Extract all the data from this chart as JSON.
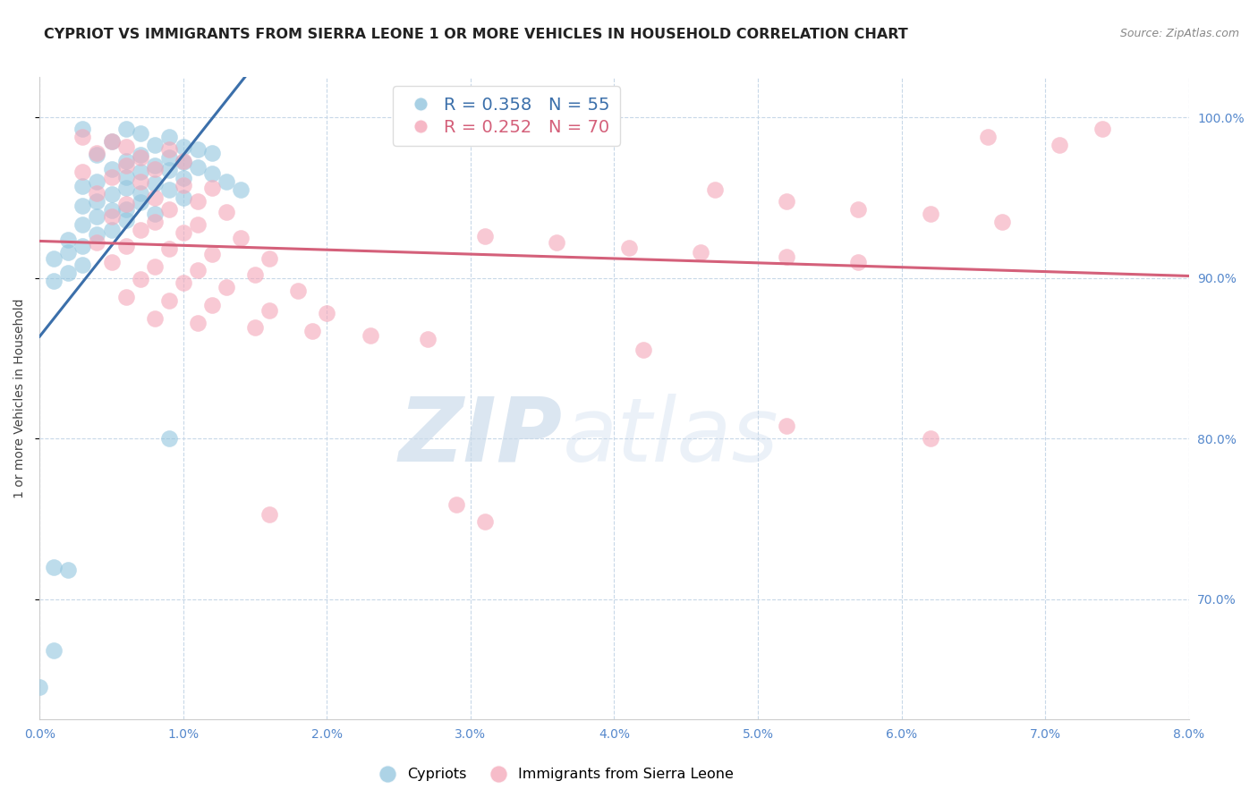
{
  "title": "CYPRIOT VS IMMIGRANTS FROM SIERRA LEONE 1 OR MORE VEHICLES IN HOUSEHOLD CORRELATION CHART",
  "source": "Source: ZipAtlas.com",
  "ylabel": "1 or more Vehicles in Household",
  "xlim": [
    0.0,
    0.08
  ],
  "ylim": [
    0.625,
    1.025
  ],
  "yticks": [
    0.7,
    0.8,
    0.9,
    1.0
  ],
  "ytick_labels": [
    "70.0%",
    "80.0%",
    "90.0%",
    "100.0%"
  ],
  "xticks": [
    0.0,
    0.01,
    0.02,
    0.03,
    0.04,
    0.05,
    0.06,
    0.07,
    0.08
  ],
  "xtick_labels": [
    "0.0%",
    "1.0%",
    "2.0%",
    "3.0%",
    "4.0%",
    "5.0%",
    "6.0%",
    "7.0%",
    "8.0%"
  ],
  "blue_R": 0.358,
  "blue_N": 55,
  "pink_R": 0.252,
  "pink_N": 70,
  "blue_color": "#92c5de",
  "pink_color": "#f4a6b8",
  "blue_line_color": "#3b6faa",
  "pink_line_color": "#d4607a",
  "blue_scatter": [
    [
      0.003,
      0.993
    ],
    [
      0.006,
      0.993
    ],
    [
      0.007,
      0.99
    ],
    [
      0.009,
      0.988
    ],
    [
      0.005,
      0.985
    ],
    [
      0.008,
      0.983
    ],
    [
      0.01,
      0.982
    ],
    [
      0.011,
      0.98
    ],
    [
      0.012,
      0.978
    ],
    [
      0.004,
      0.977
    ],
    [
      0.007,
      0.977
    ],
    [
      0.009,
      0.975
    ],
    [
      0.006,
      0.973
    ],
    [
      0.01,
      0.972
    ],
    [
      0.008,
      0.97
    ],
    [
      0.011,
      0.969
    ],
    [
      0.005,
      0.968
    ],
    [
      0.009,
      0.967
    ],
    [
      0.007,
      0.966
    ],
    [
      0.012,
      0.965
    ],
    [
      0.006,
      0.963
    ],
    [
      0.01,
      0.962
    ],
    [
      0.004,
      0.96
    ],
    [
      0.008,
      0.959
    ],
    [
      0.003,
      0.957
    ],
    [
      0.006,
      0.956
    ],
    [
      0.009,
      0.955
    ],
    [
      0.007,
      0.953
    ],
    [
      0.005,
      0.952
    ],
    [
      0.01,
      0.95
    ],
    [
      0.004,
      0.948
    ],
    [
      0.007,
      0.947
    ],
    [
      0.003,
      0.945
    ],
    [
      0.006,
      0.943
    ],
    [
      0.005,
      0.942
    ],
    [
      0.008,
      0.94
    ],
    [
      0.004,
      0.938
    ],
    [
      0.006,
      0.936
    ],
    [
      0.003,
      0.933
    ],
    [
      0.005,
      0.93
    ],
    [
      0.004,
      0.927
    ],
    [
      0.002,
      0.924
    ],
    [
      0.003,
      0.92
    ],
    [
      0.002,
      0.916
    ],
    [
      0.001,
      0.912
    ],
    [
      0.003,
      0.908
    ],
    [
      0.002,
      0.903
    ],
    [
      0.001,
      0.898
    ],
    [
      0.013,
      0.96
    ],
    [
      0.014,
      0.955
    ],
    [
      0.009,
      0.8
    ],
    [
      0.001,
      0.72
    ],
    [
      0.002,
      0.718
    ],
    [
      0.001,
      0.668
    ],
    [
      0.0,
      0.645
    ]
  ],
  "pink_scatter": [
    [
      0.003,
      0.988
    ],
    [
      0.005,
      0.985
    ],
    [
      0.006,
      0.982
    ],
    [
      0.009,
      0.98
    ],
    [
      0.004,
      0.978
    ],
    [
      0.007,
      0.975
    ],
    [
      0.01,
      0.973
    ],
    [
      0.006,
      0.97
    ],
    [
      0.008,
      0.968
    ],
    [
      0.003,
      0.966
    ],
    [
      0.005,
      0.963
    ],
    [
      0.007,
      0.96
    ],
    [
      0.01,
      0.958
    ],
    [
      0.012,
      0.956
    ],
    [
      0.004,
      0.953
    ],
    [
      0.008,
      0.95
    ],
    [
      0.011,
      0.948
    ],
    [
      0.006,
      0.946
    ],
    [
      0.009,
      0.943
    ],
    [
      0.013,
      0.941
    ],
    [
      0.005,
      0.938
    ],
    [
      0.008,
      0.935
    ],
    [
      0.011,
      0.933
    ],
    [
      0.007,
      0.93
    ],
    [
      0.01,
      0.928
    ],
    [
      0.014,
      0.925
    ],
    [
      0.004,
      0.922
    ],
    [
      0.006,
      0.92
    ],
    [
      0.009,
      0.918
    ],
    [
      0.012,
      0.915
    ],
    [
      0.016,
      0.912
    ],
    [
      0.005,
      0.91
    ],
    [
      0.008,
      0.907
    ],
    [
      0.011,
      0.905
    ],
    [
      0.015,
      0.902
    ],
    [
      0.007,
      0.899
    ],
    [
      0.01,
      0.897
    ],
    [
      0.013,
      0.894
    ],
    [
      0.018,
      0.892
    ],
    [
      0.006,
      0.888
    ],
    [
      0.009,
      0.886
    ],
    [
      0.012,
      0.883
    ],
    [
      0.016,
      0.88
    ],
    [
      0.02,
      0.878
    ],
    [
      0.008,
      0.875
    ],
    [
      0.011,
      0.872
    ],
    [
      0.015,
      0.869
    ],
    [
      0.019,
      0.867
    ],
    [
      0.023,
      0.864
    ],
    [
      0.027,
      0.862
    ],
    [
      0.031,
      0.926
    ],
    [
      0.036,
      0.922
    ],
    [
      0.041,
      0.919
    ],
    [
      0.046,
      0.916
    ],
    [
      0.052,
      0.913
    ],
    [
      0.057,
      0.91
    ],
    [
      0.042,
      0.855
    ],
    [
      0.052,
      0.808
    ],
    [
      0.062,
      0.8
    ],
    [
      0.066,
      0.988
    ],
    [
      0.071,
      0.983
    ],
    [
      0.029,
      0.759
    ],
    [
      0.047,
      0.955
    ],
    [
      0.052,
      0.948
    ],
    [
      0.057,
      0.943
    ],
    [
      0.062,
      0.94
    ],
    [
      0.067,
      0.935
    ],
    [
      0.074,
      0.993
    ],
    [
      0.016,
      0.753
    ],
    [
      0.031,
      0.748
    ]
  ],
  "watermark_zip": "ZIP",
  "watermark_atlas": "atlas",
  "background_color": "#ffffff",
  "grid_color": "#c8d8e8",
  "axis_color": "#5588cc",
  "title_fontsize": 11.5,
  "label_fontsize": 10,
  "tick_fontsize": 10,
  "legend_fontsize": 14
}
